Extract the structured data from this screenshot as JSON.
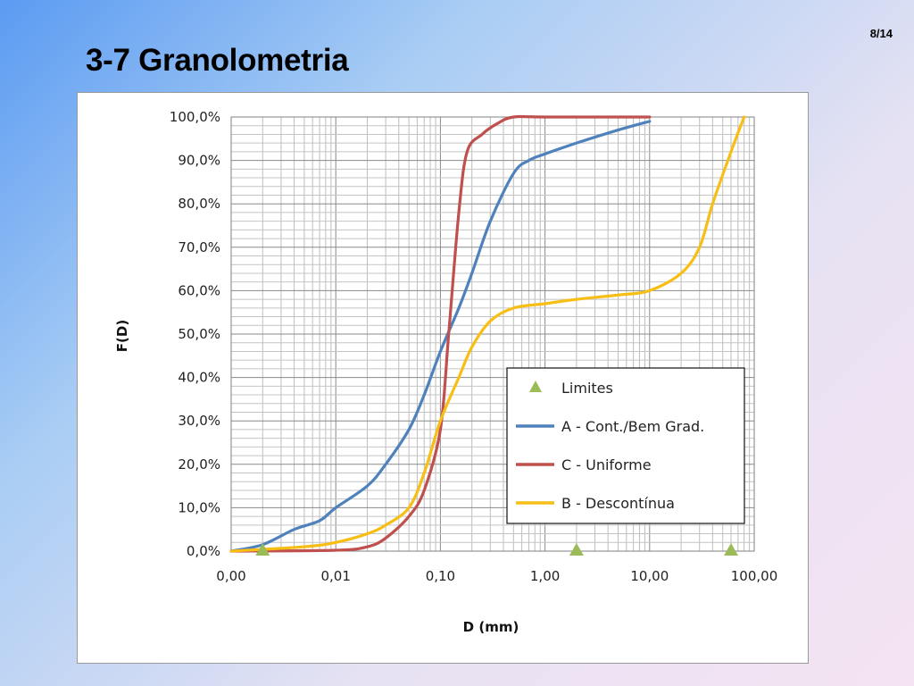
{
  "slide": {
    "title": "3-7 Granolometria",
    "page_number": "8/14"
  },
  "chart_data": {
    "type": "line",
    "xscale": "log",
    "xlim": [
      0.001,
      100
    ],
    "ylim": [
      0,
      100
    ],
    "xlabel": "D (mm)",
    "ylabel": "F(D)",
    "grid": true,
    "legend_position": "center-right",
    "x_tick_labels": [
      "0,00",
      "0,01",
      "0,10",
      "1,00",
      "10,00",
      "100,00"
    ],
    "y_tick_labels": [
      "0,0%",
      "10,0%",
      "20,0%",
      "30,0%",
      "40,0%",
      "50,0%",
      "60,0%",
      "70,0%",
      "80,0%",
      "90,0%",
      "100,0%"
    ],
    "series": [
      {
        "name": "Limites",
        "kind": "marker",
        "color": "#9bbb59",
        "points": [
          [
            0.002,
            0
          ],
          [
            2,
            0
          ],
          [
            60,
            0
          ]
        ]
      },
      {
        "name": "A - Cont./Bem Grad.",
        "kind": "line",
        "color": "#4f81bd",
        "points": [
          [
            0.001,
            0
          ],
          [
            0.002,
            1.5
          ],
          [
            0.004,
            5
          ],
          [
            0.007,
            7
          ],
          [
            0.01,
            10
          ],
          [
            0.02,
            15
          ],
          [
            0.03,
            20
          ],
          [
            0.05,
            28
          ],
          [
            0.07,
            36
          ],
          [
            0.1,
            46
          ],
          [
            0.15,
            56
          ],
          [
            0.2,
            64
          ],
          [
            0.3,
            76
          ],
          [
            0.5,
            87
          ],
          [
            0.7,
            90
          ],
          [
            1,
            91.5
          ],
          [
            2,
            94
          ],
          [
            5,
            97
          ],
          [
            10,
            99
          ]
        ]
      },
      {
        "name": "C - Uniforme",
        "kind": "line",
        "color": "#c0504d",
        "points": [
          [
            0.001,
            0
          ],
          [
            0.01,
            0.2
          ],
          [
            0.02,
            1
          ],
          [
            0.03,
            3
          ],
          [
            0.05,
            8
          ],
          [
            0.07,
            14
          ],
          [
            0.1,
            28
          ],
          [
            0.12,
            50
          ],
          [
            0.15,
            78
          ],
          [
            0.18,
            92
          ],
          [
            0.25,
            96
          ],
          [
            0.35,
            98.5
          ],
          [
            0.5,
            100
          ],
          [
            1,
            100
          ],
          [
            10,
            100
          ]
        ]
      },
      {
        "name": "B - Descontínua",
        "kind": "line",
        "color": "#f7be16",
        "points": [
          [
            0.001,
            0
          ],
          [
            0.005,
            1
          ],
          [
            0.01,
            2
          ],
          [
            0.02,
            4
          ],
          [
            0.03,
            6
          ],
          [
            0.05,
            10
          ],
          [
            0.07,
            18
          ],
          [
            0.1,
            30
          ],
          [
            0.15,
            40
          ],
          [
            0.2,
            47
          ],
          [
            0.3,
            53
          ],
          [
            0.5,
            56
          ],
          [
            1,
            57
          ],
          [
            2,
            58
          ],
          [
            5,
            59
          ],
          [
            10,
            60
          ],
          [
            20,
            64
          ],
          [
            30,
            70
          ],
          [
            40,
            80
          ],
          [
            60,
            92
          ],
          [
            80,
            100
          ]
        ]
      }
    ]
  }
}
